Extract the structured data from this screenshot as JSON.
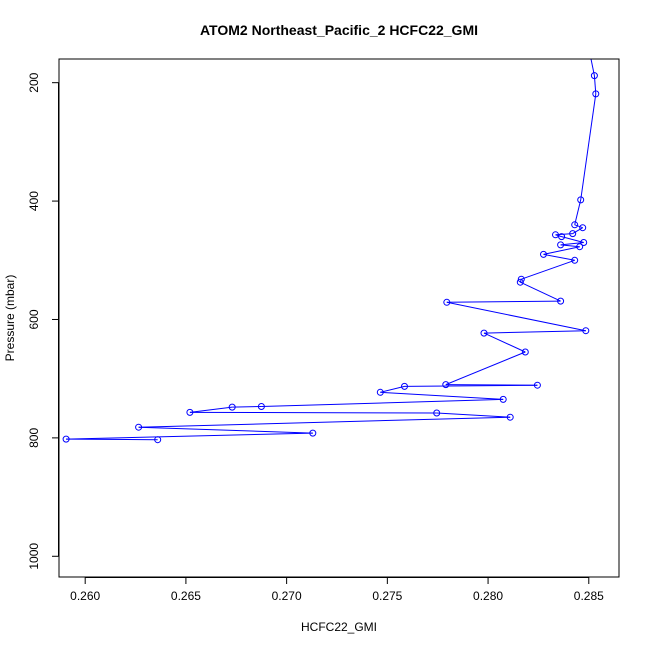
{
  "chart_data": {
    "type": "line",
    "title": "ATOM2 Northeast_Pacific_2 HCFC22_GMI",
    "xlabel": "HCFC22_GMI",
    "ylabel": "Pressure (mbar)",
    "xlim": [
      0.2587,
      0.2865
    ],
    "ylim": [
      1035,
      160
    ],
    "y_reversed": true,
    "xticks": [
      0.26,
      0.265,
      0.27,
      0.275,
      0.28,
      0.285
    ],
    "xtick_labels": [
      "0.260",
      "0.265",
      "0.270",
      "0.275",
      "0.280",
      "0.285"
    ],
    "yticks": [
      200,
      400,
      600,
      800,
      1000
    ],
    "ytick_labels": [
      "200",
      "400",
      "600",
      "800",
      "1000"
    ],
    "grid": false,
    "legend": "none",
    "series_color": "#0000ff",
    "series": [
      {
        "values": [
          {
            "x": 0.28505,
            "y": 150
          },
          {
            "x": 0.28528,
            "y": 188
          },
          {
            "x": 0.28535,
            "y": 219
          },
          {
            "x": 0.2846,
            "y": 398
          },
          {
            "x": 0.2843,
            "y": 440
          },
          {
            "x": 0.2847,
            "y": 445
          },
          {
            "x": 0.2842,
            "y": 455
          },
          {
            "x": 0.28335,
            "y": 457
          },
          {
            "x": 0.28365,
            "y": 460
          },
          {
            "x": 0.28475,
            "y": 470
          },
          {
            "x": 0.2836,
            "y": 474
          },
          {
            "x": 0.28455,
            "y": 477
          },
          {
            "x": 0.28275,
            "y": 490
          },
          {
            "x": 0.2843,
            "y": 500
          },
          {
            "x": 0.28165,
            "y": 532
          },
          {
            "x": 0.2816,
            "y": 537
          },
          {
            "x": 0.2836,
            "y": 569
          },
          {
            "x": 0.27795,
            "y": 571
          },
          {
            "x": 0.28485,
            "y": 619
          },
          {
            "x": 0.2798,
            "y": 623
          },
          {
            "x": 0.28185,
            "y": 655
          },
          {
            "x": 0.2779,
            "y": 710
          },
          {
            "x": 0.28245,
            "y": 711
          },
          {
            "x": 0.27585,
            "y": 713
          },
          {
            "x": 0.27465,
            "y": 723
          },
          {
            "x": 0.28075,
            "y": 735
          },
          {
            "x": 0.26875,
            "y": 747
          },
          {
            "x": 0.2673,
            "y": 748
          },
          {
            "x": 0.2652,
            "y": 757
          },
          {
            "x": 0.27745,
            "y": 758
          },
          {
            "x": 0.2811,
            "y": 765
          },
          {
            "x": 0.26265,
            "y": 782
          },
          {
            "x": 0.2713,
            "y": 792
          },
          {
            "x": 0.25905,
            "y": 802
          },
          {
            "x": 0.2636,
            "y": 803
          }
        ]
      }
    ]
  }
}
